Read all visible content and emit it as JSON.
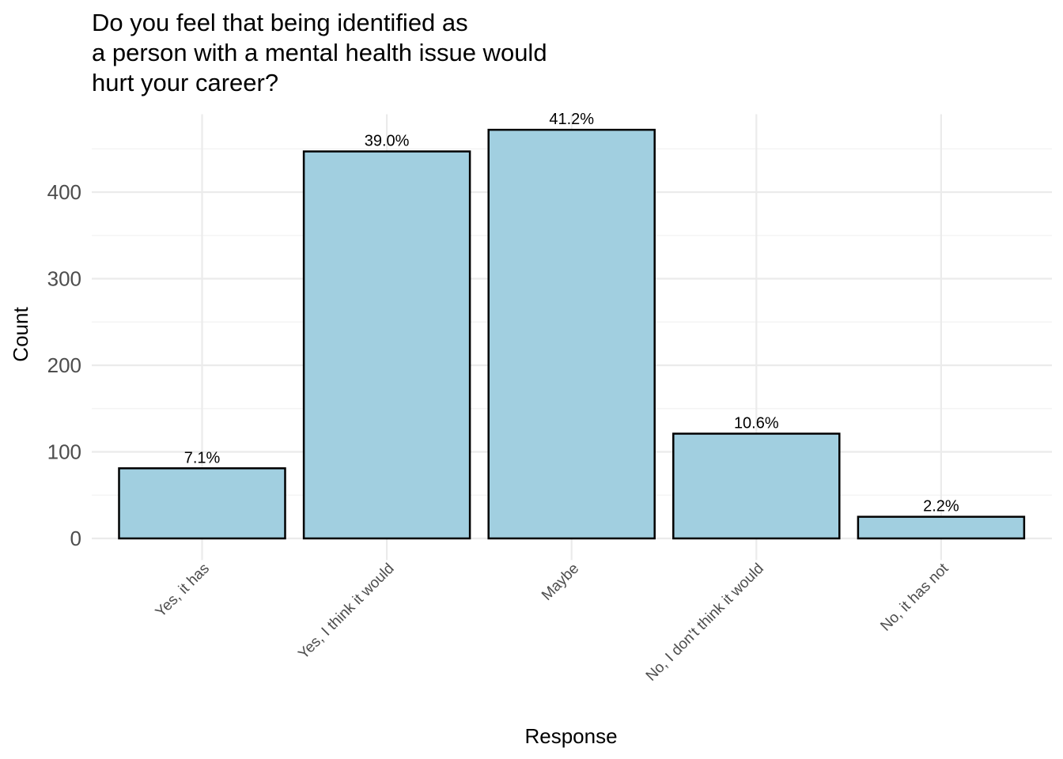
{
  "chart_data": {
    "type": "bar",
    "title": [
      "Do you feel that being identified as",
      "a person with a mental health issue would",
      "hurt your career?"
    ],
    "xlabel": "Response",
    "ylabel": "Count",
    "categories": [
      "Yes, it has",
      "Yes, I think it would",
      "Maybe",
      "No, I don't think it would",
      "No, it has not"
    ],
    "values": [
      81,
      447,
      472,
      121,
      25
    ],
    "labels": [
      "7.1%",
      "39.0%",
      "41.2%",
      "10.6%",
      "2.2%"
    ],
    "ylim": [
      0,
      490
    ],
    "yticks": [
      0,
      100,
      200,
      300,
      400
    ],
    "grid": true,
    "legend": "none",
    "colors": {
      "bar_fill": "#a1cfe0",
      "bar_outline": "#000000",
      "grid": "#ebebeb"
    }
  }
}
